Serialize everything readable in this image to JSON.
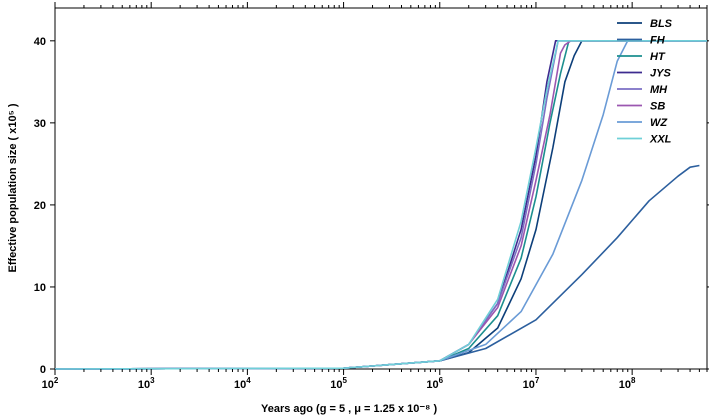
{
  "chart_data": {
    "type": "line",
    "xlabel": "Years ago (g = 5 , μ = 1.25 x 10⁻⁸ )",
    "ylabel": "Effective population size ( x10⁵ )",
    "x_scale": "log",
    "xlim": [
      100,
      600000000
    ],
    "ylim": [
      0,
      44
    ],
    "x_ticks": [
      {
        "value": 100,
        "label": "10",
        "exp": "2"
      },
      {
        "value": 1000,
        "label": "10",
        "exp": "3"
      },
      {
        "value": 10000,
        "label": "10",
        "exp": "4"
      },
      {
        "value": 100000,
        "label": "10",
        "exp": "5"
      },
      {
        "value": 1000000,
        "label": "10",
        "exp": "6"
      },
      {
        "value": 10000000,
        "label": "10",
        "exp": "7"
      },
      {
        "value": 100000000,
        "label": "10",
        "exp": "8"
      }
    ],
    "y_ticks": [
      {
        "value": 0,
        "label": "0"
      },
      {
        "value": 10,
        "label": "10"
      },
      {
        "value": 20,
        "label": "20"
      },
      {
        "value": 30,
        "label": "30"
      },
      {
        "value": 40,
        "label": "40"
      }
    ],
    "grid": false,
    "legend": "top-right",
    "series": [
      {
        "name": "BLS",
        "color": "#0d3f7a",
        "points": [
          [
            100,
            0
          ],
          [
            100000,
            0.1
          ],
          [
            1000000,
            1
          ],
          [
            2000000,
            2
          ],
          [
            4000000,
            5
          ],
          [
            7000000,
            11
          ],
          [
            10000000,
            17
          ],
          [
            15000000,
            27
          ],
          [
            20000000,
            35
          ],
          [
            25000000,
            38.2
          ],
          [
            30000000,
            40
          ],
          [
            600000000,
            40
          ]
        ]
      },
      {
        "name": "FH",
        "color": "#2c5f9e",
        "points": [
          [
            100,
            0
          ],
          [
            100000,
            0.1
          ],
          [
            1000000,
            1
          ],
          [
            3000000,
            2.5
          ],
          [
            10000000,
            6
          ],
          [
            30000000,
            11.5
          ],
          [
            70000000,
            16
          ],
          [
            150000000,
            20.5
          ],
          [
            300000000,
            23.5
          ],
          [
            400000000,
            24.6
          ],
          [
            500000000,
            24.8
          ]
        ]
      },
      {
        "name": "HT",
        "color": "#1c8f8f",
        "points": [
          [
            100,
            0
          ],
          [
            100000,
            0.1
          ],
          [
            1000000,
            1
          ],
          [
            2000000,
            2.5
          ],
          [
            4000000,
            6.5
          ],
          [
            7000000,
            13.5
          ],
          [
            10000000,
            21
          ],
          [
            14000000,
            30
          ],
          [
            18000000,
            36
          ],
          [
            22000000,
            40
          ],
          [
            600000000,
            40
          ]
        ]
      },
      {
        "name": "JYS",
        "color": "#3d2b8f",
        "points": [
          [
            100,
            0
          ],
          [
            100000,
            0.1
          ],
          [
            1000000,
            1
          ],
          [
            2000000,
            3
          ],
          [
            4000000,
            8
          ],
          [
            7000000,
            17
          ],
          [
            10000000,
            26
          ],
          [
            13000000,
            35
          ],
          [
            16000000,
            40
          ],
          [
            600000000,
            40
          ]
        ]
      },
      {
        "name": "MH",
        "color": "#7b6fc4",
        "points": [
          [
            100,
            0
          ],
          [
            100000,
            0.1
          ],
          [
            1000000,
            1
          ],
          [
            2000000,
            3
          ],
          [
            4000000,
            8
          ],
          [
            7000000,
            16
          ],
          [
            10000000,
            25
          ],
          [
            13000000,
            33
          ],
          [
            17000000,
            40
          ],
          [
            600000000,
            40
          ]
        ]
      },
      {
        "name": "SB",
        "color": "#9b57b0",
        "points": [
          [
            100,
            0
          ],
          [
            100000,
            0.1
          ],
          [
            1000000,
            1
          ],
          [
            2000000,
            3
          ],
          [
            4000000,
            7.5
          ],
          [
            7000000,
            15
          ],
          [
            10000000,
            23
          ],
          [
            14000000,
            31
          ],
          [
            18000000,
            38.5
          ],
          [
            20000000,
            39.5
          ],
          [
            23000000,
            40
          ],
          [
            600000000,
            40
          ]
        ]
      },
      {
        "name": "WZ",
        "color": "#6a9bd6",
        "points": [
          [
            100,
            0
          ],
          [
            100000,
            0.1
          ],
          [
            1000000,
            1
          ],
          [
            3000000,
            3
          ],
          [
            7000000,
            7
          ],
          [
            15000000,
            14
          ],
          [
            30000000,
            23
          ],
          [
            50000000,
            31
          ],
          [
            70000000,
            37.5
          ],
          [
            90000000,
            40
          ],
          [
            600000000,
            40
          ]
        ]
      },
      {
        "name": "XXL",
        "color": "#6fd0d8",
        "points": [
          [
            100,
            0
          ],
          [
            100000,
            0.1
          ],
          [
            1000000,
            1
          ],
          [
            2000000,
            3
          ],
          [
            4000000,
            8.5
          ],
          [
            7000000,
            18
          ],
          [
            10000000,
            27
          ],
          [
            13000000,
            34
          ],
          [
            17000000,
            40
          ],
          [
            600000000,
            40
          ]
        ]
      }
    ]
  }
}
